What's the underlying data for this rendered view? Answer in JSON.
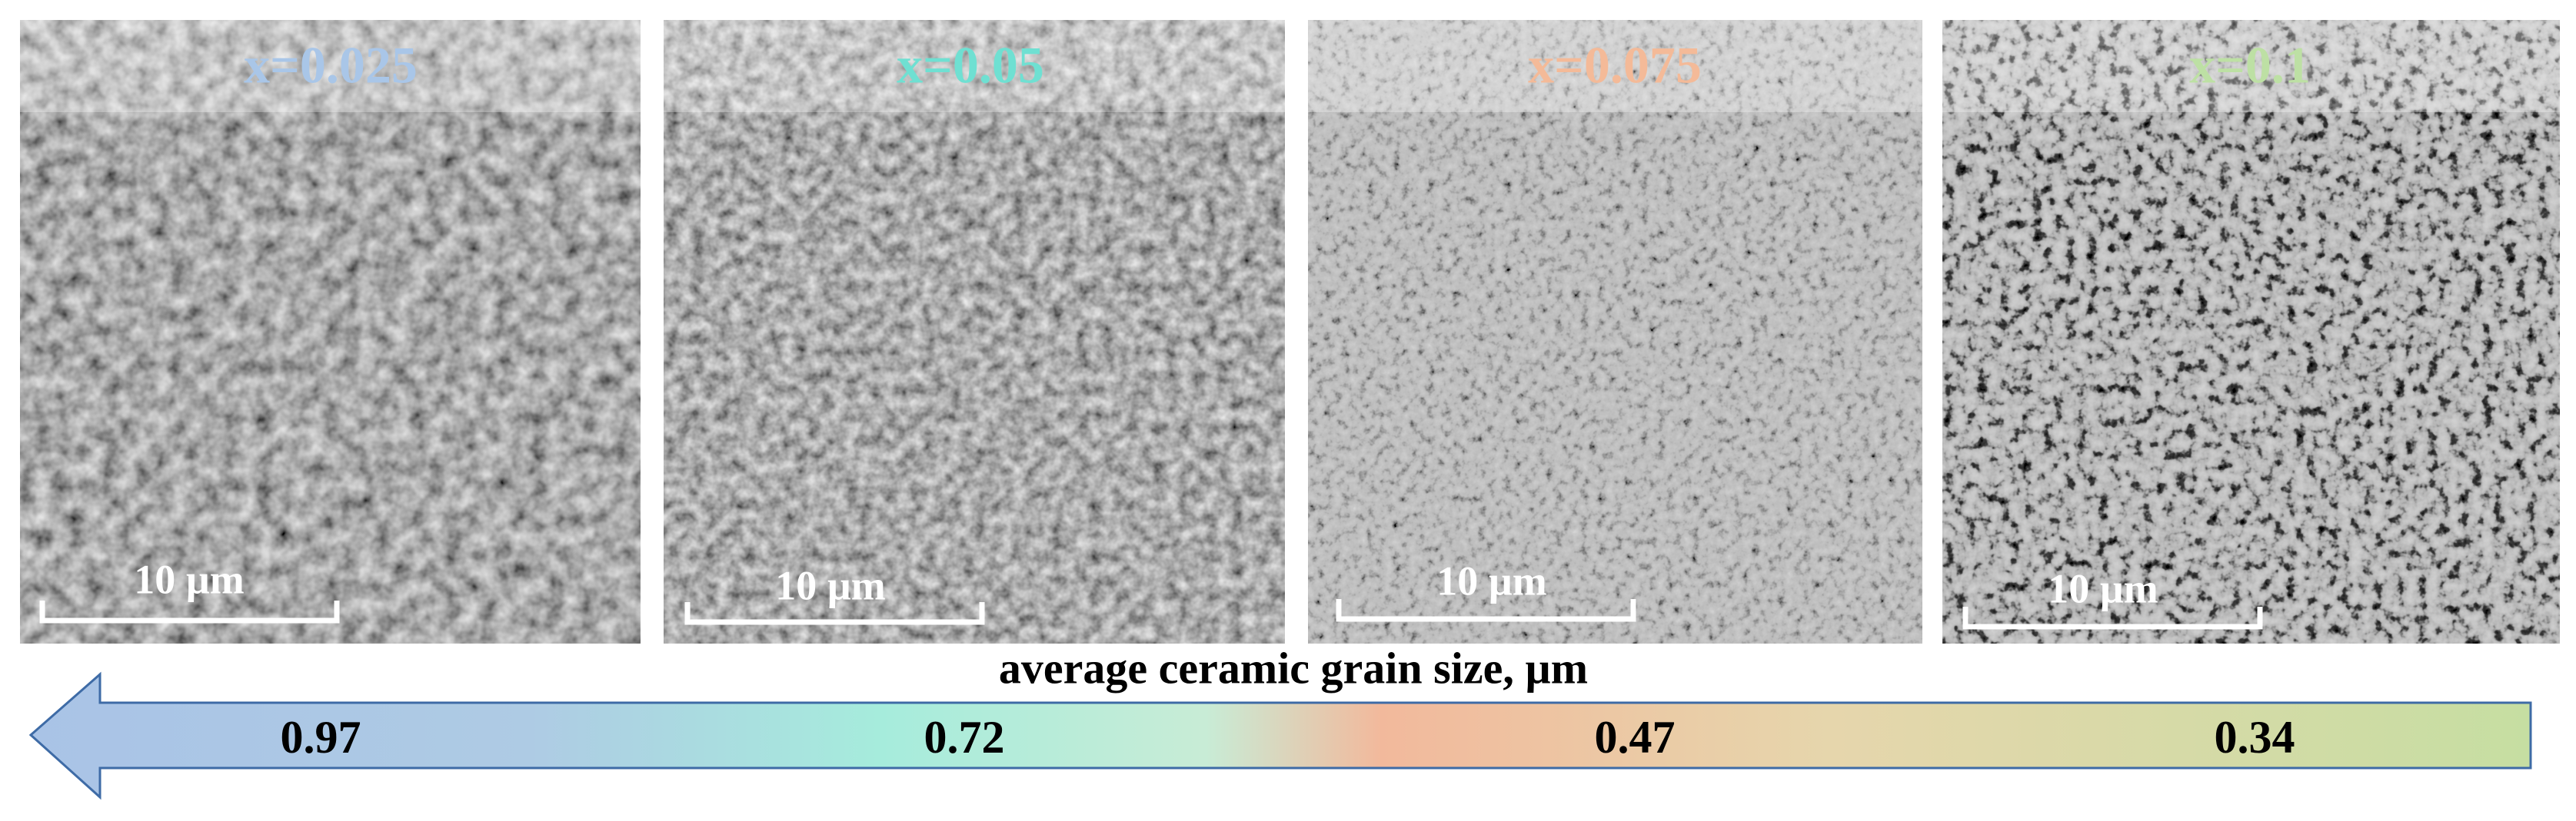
{
  "panels": [
    {
      "label": "x=0.025",
      "scale_bar": "10 µm"
    },
    {
      "label": "x=0.05",
      "scale_bar": "10 µm"
    },
    {
      "label": "x=0.075",
      "scale_bar": "10 µm"
    },
    {
      "label": "x=0.1",
      "scale_bar": "10 µm"
    }
  ],
  "arrow": {
    "title": "average ceramic grain size, µm",
    "values": [
      "0.97",
      "0.72",
      "0.47",
      "0.34"
    ]
  }
}
